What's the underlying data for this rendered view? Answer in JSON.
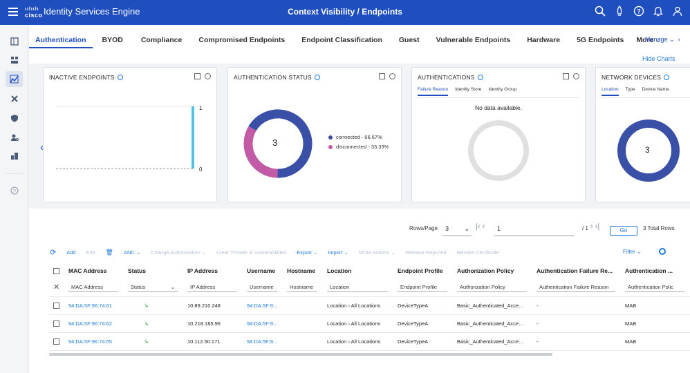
{
  "header": {
    "brand": "cisco",
    "app_title": "Identity Services Engine",
    "page_title": "Context Visibility / Endpoints",
    "icons": [
      "search-icon",
      "notifications-rocket-icon",
      "help-icon",
      "bell-icon",
      "user-icon"
    ],
    "color": "#1f4fbf"
  },
  "siderail": {
    "icons": [
      "bookmark-icon",
      "dashboard-icon",
      "context-visibility-icon",
      "tools-icon",
      "policy-icon",
      "administration-icon",
      "work-centers-icon",
      "help-circle-icon"
    ]
  },
  "tabs": [
    "Authentication",
    "BYOD",
    "Compliance",
    "Compromised Endpoints",
    "Endpoint Classification",
    "Guest",
    "Vulnerable Endpoints",
    "Hardware",
    "5G Endpoints",
    "More"
  ],
  "manage_label": "Manage",
  "hide_charts_label": "Hide Charts",
  "cards": {
    "inactive": {
      "title": "INACTIVE ENDPOINTS",
      "y_top_label": "1",
      "y_bottom_label": "0"
    },
    "auth_status": {
      "title": "AUTHENTICATION STATUS",
      "center_value": "3",
      "legend": [
        {
          "label": "connected - 66.67%",
          "color": "#3a4fa6"
        },
        {
          "label": "disconnected - 33.33%",
          "color": "#c35aa6"
        }
      ]
    },
    "authentications": {
      "title": "AUTHENTICATIONS",
      "subtabs": [
        "Failure Reason",
        "Identity Store",
        "Identity Group"
      ],
      "empty_message": "No data available."
    },
    "network_devices": {
      "title": "NETWORK DEVICES",
      "subtabs": [
        "Location",
        "Type",
        "Device Name"
      ],
      "center_value": "3"
    }
  },
  "chart_data": [
    {
      "type": "bar",
      "ylim": [
        0,
        1
      ],
      "categories": [
        "",
        "",
        "",
        "",
        "",
        "",
        "",
        "",
        "",
        "",
        "",
        "",
        "",
        "",
        "",
        "",
        "",
        "",
        "",
        "",
        "",
        "",
        "",
        "",
        "",
        ""
      ],
      "values": [
        0,
        0,
        0,
        0,
        0,
        0,
        0,
        0,
        0,
        0,
        0,
        0,
        0,
        0,
        0,
        0,
        0,
        0,
        0,
        0,
        0,
        0,
        0,
        0,
        0,
        1
      ],
      "ytick_labels": [
        "1",
        "0"
      ]
    },
    {
      "type": "pie",
      "center_label": "3",
      "categories": [
        "connected",
        "disconnected"
      ],
      "values": [
        66.67,
        33.33
      ],
      "colors": [
        "#3a4fa6",
        "#c35aa6"
      ],
      "legend": [
        "connected - 66.67%",
        "disconnected - 33.33%"
      ],
      "legend_position": "right"
    },
    {
      "type": "pie",
      "categories": [
        "Location"
      ],
      "values": [
        3
      ],
      "colors": [
        "#3a4fa6"
      ],
      "center_label": "3"
    }
  ],
  "pager": {
    "rows_label": "Rows/Page",
    "rows_value": "3",
    "page_value": "1",
    "page_total": "/ 1",
    "go_label": "Go",
    "total_rows": "3 Total Rows"
  },
  "toolbar": {
    "add": "Add",
    "edit": "Edit",
    "anc": "ANC",
    "change_auth": "Change Authorization",
    "clear_threats": "Clear Threats & Vulnerabilities",
    "export": "Export",
    "import": "Import",
    "mdm": "MDM Actions",
    "release": "Release Rejected",
    "revoke": "Revoke Certificate",
    "filter": "Filter"
  },
  "table": {
    "columns": [
      "MAC Address",
      "Status",
      "IP Address",
      "Username",
      "Hostname",
      "Location",
      "Endpoint Profile",
      "Authorization Policy",
      "Authentication Failure Re...",
      "Authentication ..."
    ],
    "filters": [
      "MAC Address",
      "Status",
      "IP Address",
      "Username",
      "Hostname",
      "Location",
      "Endpoint Profile",
      "Authorization Policy",
      "Authentication Failure Reason",
      "Authentication Polic"
    ],
    "rows": [
      {
        "mac": "94:DA:5F:96:74:61",
        "ip": "10.89.210.248",
        "user": "94:DA:5F:9...",
        "host": "",
        "loc_a": "Location",
        "loc_b": "All Locations",
        "profile": "DeviceTypeA",
        "authz": "Basic_Authenticated_Acce...",
        "failure": "-",
        "authp": "MAB"
      },
      {
        "mac": "94:DA:5F:96:74:62",
        "ip": "10.218.185.96",
        "user": "94:DA:5F:9...",
        "host": "",
        "loc_a": "Location",
        "loc_b": "All Locations",
        "profile": "DeviceTypeA",
        "authz": "Basic_Authenticated_Acce...",
        "failure": "-",
        "authp": "MAB"
      },
      {
        "mac": "94:DA:5F:96:74:65",
        "ip": "10.112.50.171",
        "user": "94:DA:5F:9...",
        "host": "",
        "loc_a": "Location",
        "loc_b": "All Locations",
        "profile": "DeviceTypeA",
        "authz": "Basic_Authenticated_Acce...",
        "failure": "-",
        "authp": "MAB"
      }
    ]
  }
}
